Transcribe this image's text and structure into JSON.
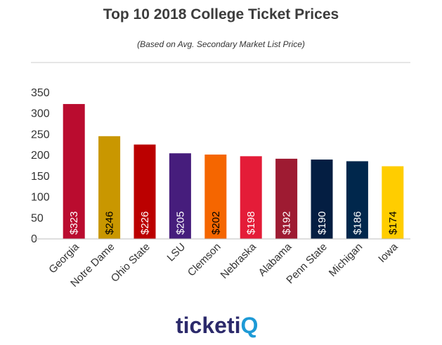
{
  "title": "Top 10 2018 College Ticket Prices",
  "subtitle": "(Based on Avg. Secondary Market List Price)",
  "chart_data": {
    "type": "bar",
    "title": "Top 10 2018 College Ticket Prices",
    "subtitle": "(Based on Avg. Secondary Market List Price)",
    "xlabel": "",
    "ylabel": "",
    "ylim": [
      0,
      350
    ],
    "yticks": [
      0,
      50,
      100,
      150,
      200,
      250,
      300,
      350
    ],
    "grid": false,
    "legend": "none",
    "categories": [
      "Georgia",
      "Notre Dame",
      "Ohio State",
      "LSU",
      "Clemson",
      "Nebraska",
      "Alabama",
      "Penn State",
      "Michigan",
      "Iowa"
    ],
    "values": [
      323,
      246,
      226,
      205,
      202,
      198,
      192,
      190,
      186,
      174
    ],
    "data_labels": [
      "$323",
      "$246",
      "$226",
      "$205",
      "$202",
      "$198",
      "$192",
      "$190",
      "$186",
      "$174"
    ],
    "colors": [
      "#ba0c2f",
      "#c99700",
      "#bb0000",
      "#461d7c",
      "#f56600",
      "#e41c38",
      "#9e1b32",
      "#041e42",
      "#00274c",
      "#ffcd00"
    ],
    "label_colors": [
      "#ffffff",
      "#000000",
      "#ffffff",
      "#ffffff",
      "#000000",
      "#ffffff",
      "#ffffff",
      "#ffffff",
      "#ffffff",
      "#000000"
    ]
  },
  "logo": {
    "text_main": "ticketi",
    "text_accent": "Q",
    "color_main": "#2c2a6b",
    "color_accent": "#1e9ad6"
  }
}
